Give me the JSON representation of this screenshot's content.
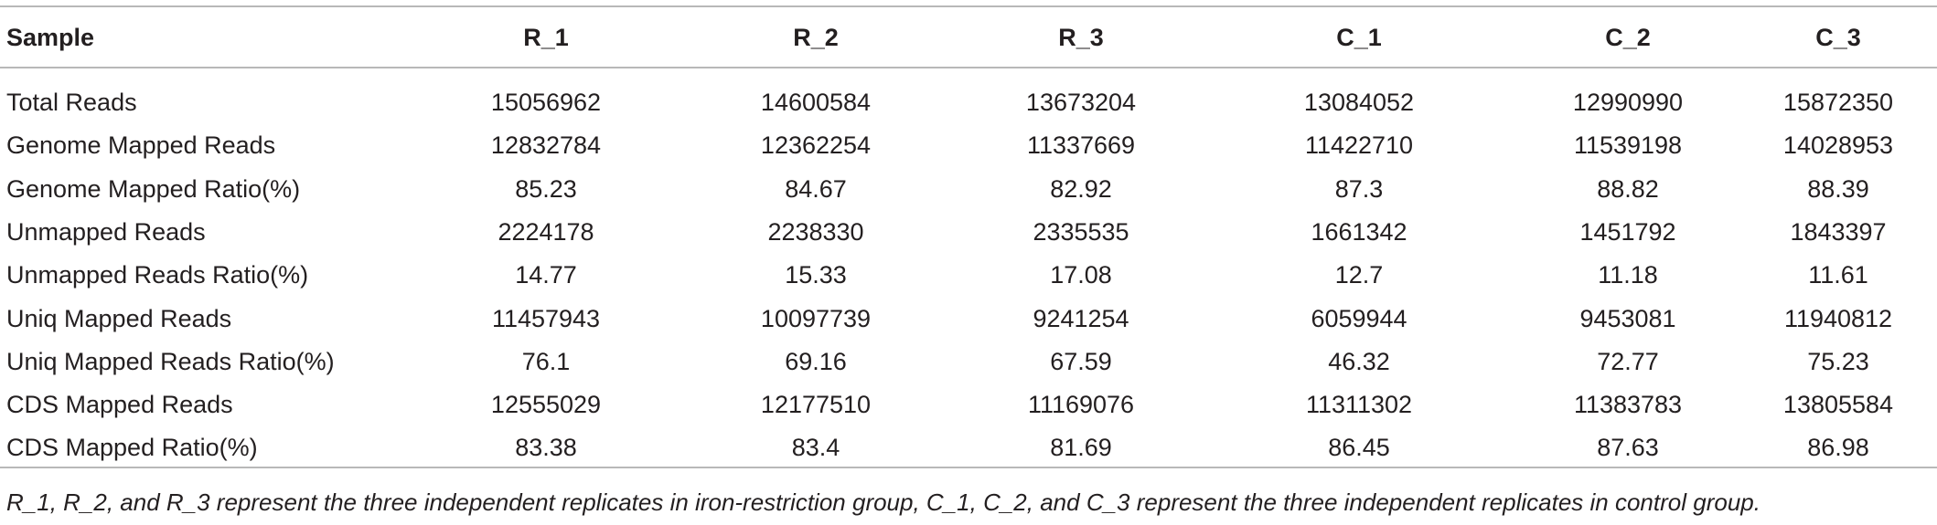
{
  "table": {
    "header": [
      "Sample",
      "R_1",
      "R_2",
      "R_3",
      "C_1",
      "C_2",
      "C_3"
    ],
    "rows": [
      [
        "Total Reads",
        "15056962",
        "14600584",
        "13673204",
        "13084052",
        "12990990",
        "15872350"
      ],
      [
        "Genome Mapped Reads",
        "12832784",
        "12362254",
        "11337669",
        "11422710",
        "11539198",
        "14028953"
      ],
      [
        "Genome Mapped Ratio(%)",
        "85.23",
        "84.67",
        "82.92",
        "87.3",
        "88.82",
        "88.39"
      ],
      [
        "Unmapped Reads",
        "2224178",
        "2238330",
        "2335535",
        "1661342",
        "1451792",
        "1843397"
      ],
      [
        "Unmapped Reads Ratio(%)",
        "14.77",
        "15.33",
        "17.08",
        "12.7",
        "11.18",
        "11.61"
      ],
      [
        "Uniq Mapped Reads",
        "11457943",
        "10097739",
        "9241254",
        "6059944",
        "9453081",
        "11940812"
      ],
      [
        "Uniq Mapped Reads Ratio(%)",
        "76.1",
        "69.16",
        "67.59",
        "46.32",
        "72.77",
        "75.23"
      ],
      [
        "CDS Mapped Reads",
        "12555029",
        "12177510",
        "11169076",
        "11311302",
        "11383783",
        "13805584"
      ],
      [
        "CDS Mapped Ratio(%)",
        "83.38",
        "83.4",
        "81.69",
        "86.45",
        "87.63",
        "86.98"
      ]
    ],
    "footnote": "R_1, R_2, and R_3 represent the three independent replicates in iron-restriction group, C_1, C_2, and C_3 represent the three independent replicates in control group."
  }
}
